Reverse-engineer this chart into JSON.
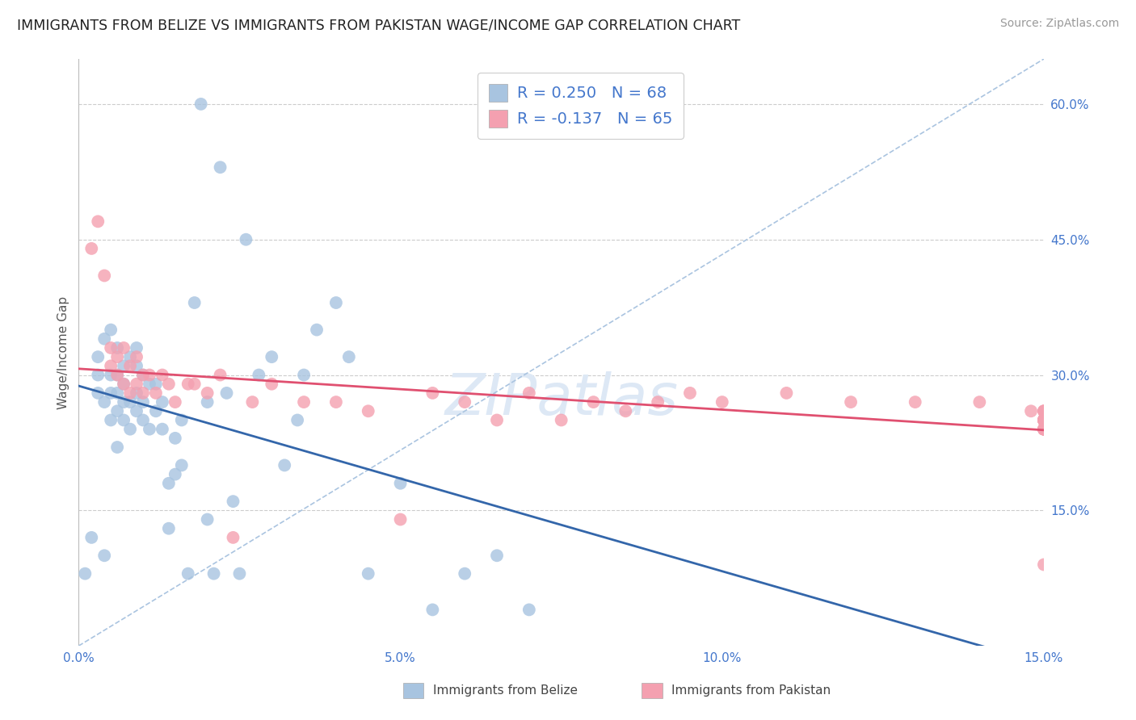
{
  "title": "IMMIGRANTS FROM BELIZE VS IMMIGRANTS FROM PAKISTAN WAGE/INCOME GAP CORRELATION CHART",
  "source": "Source: ZipAtlas.com",
  "ylabel": "Wage/Income Gap",
  "watermark_zip": "ZIP",
  "watermark_atlas": "atlas",
  "belize_color": "#a8c4e0",
  "pakistan_color": "#f4a0b0",
  "belize_line_color": "#3366aa",
  "pakistan_line_color": "#e05070",
  "ref_line_color": "#aac4e0",
  "tick_color": "#4477cc",
  "R_belize": 0.25,
  "N_belize": 68,
  "R_pakistan": -0.137,
  "N_pakistan": 65,
  "xlim": [
    0.0,
    0.15
  ],
  "ylim": [
    0.0,
    0.65
  ],
  "ytick_vals": [
    0.15,
    0.3,
    0.45,
    0.6
  ],
  "ytick_labels": [
    "15.0%",
    "30.0%",
    "45.0%",
    "60.0%"
  ],
  "xtick_vals": [
    0.0,
    0.05,
    0.1,
    0.15
  ],
  "xtick_labels": [
    "0.0%",
    "5.0%",
    "10.0%",
    "15.0%"
  ],
  "legend_label_belize": "Immigrants from Belize",
  "legend_label_pakistan": "Immigrants from Pakistan",
  "belize_x": [
    0.001,
    0.002,
    0.003,
    0.003,
    0.003,
    0.004,
    0.004,
    0.004,
    0.005,
    0.005,
    0.005,
    0.005,
    0.006,
    0.006,
    0.006,
    0.006,
    0.006,
    0.007,
    0.007,
    0.007,
    0.007,
    0.008,
    0.008,
    0.008,
    0.009,
    0.009,
    0.009,
    0.009,
    0.01,
    0.01,
    0.01,
    0.011,
    0.011,
    0.012,
    0.012,
    0.013,
    0.013,
    0.014,
    0.014,
    0.015,
    0.015,
    0.016,
    0.016,
    0.017,
    0.018,
    0.019,
    0.02,
    0.02,
    0.021,
    0.022,
    0.023,
    0.024,
    0.025,
    0.026,
    0.028,
    0.03,
    0.032,
    0.034,
    0.035,
    0.037,
    0.04,
    0.042,
    0.045,
    0.05,
    0.055,
    0.06,
    0.065,
    0.07
  ],
  "belize_y": [
    0.08,
    0.12,
    0.28,
    0.3,
    0.32,
    0.1,
    0.27,
    0.34,
    0.25,
    0.28,
    0.3,
    0.35,
    0.22,
    0.26,
    0.28,
    0.3,
    0.33,
    0.25,
    0.27,
    0.29,
    0.31,
    0.24,
    0.27,
    0.32,
    0.26,
    0.28,
    0.31,
    0.33,
    0.25,
    0.27,
    0.3,
    0.24,
    0.29,
    0.26,
    0.29,
    0.24,
    0.27,
    0.13,
    0.18,
    0.19,
    0.23,
    0.2,
    0.25,
    0.08,
    0.38,
    0.6,
    0.14,
    0.27,
    0.08,
    0.53,
    0.28,
    0.16,
    0.08,
    0.45,
    0.3,
    0.32,
    0.2,
    0.25,
    0.3,
    0.35,
    0.38,
    0.32,
    0.08,
    0.18,
    0.04,
    0.08,
    0.1,
    0.04
  ],
  "pakistan_x": [
    0.002,
    0.003,
    0.004,
    0.005,
    0.005,
    0.006,
    0.006,
    0.007,
    0.007,
    0.008,
    0.008,
    0.009,
    0.009,
    0.01,
    0.01,
    0.011,
    0.012,
    0.013,
    0.014,
    0.015,
    0.017,
    0.018,
    0.02,
    0.022,
    0.024,
    0.027,
    0.03,
    0.035,
    0.04,
    0.045,
    0.05,
    0.055,
    0.06,
    0.065,
    0.07,
    0.075,
    0.08,
    0.085,
    0.09,
    0.095,
    0.1,
    0.11,
    0.12,
    0.13,
    0.14,
    0.148,
    0.15,
    0.15,
    0.15,
    0.15,
    0.15,
    0.15,
    0.15,
    0.15,
    0.15,
    0.15,
    0.15,
    0.15,
    0.15,
    0.15,
    0.15,
    0.15,
    0.15,
    0.15,
    0.15
  ],
  "pakistan_y": [
    0.44,
    0.47,
    0.41,
    0.31,
    0.33,
    0.3,
    0.32,
    0.29,
    0.33,
    0.28,
    0.31,
    0.29,
    0.32,
    0.28,
    0.3,
    0.3,
    0.28,
    0.3,
    0.29,
    0.27,
    0.29,
    0.29,
    0.28,
    0.3,
    0.12,
    0.27,
    0.29,
    0.27,
    0.27,
    0.26,
    0.14,
    0.28,
    0.27,
    0.25,
    0.28,
    0.25,
    0.27,
    0.26,
    0.27,
    0.28,
    0.27,
    0.28,
    0.27,
    0.27,
    0.27,
    0.26,
    0.25,
    0.25,
    0.24,
    0.09,
    0.25,
    0.26,
    0.24,
    0.25,
    0.26,
    0.25,
    0.25,
    0.24,
    0.25,
    0.25,
    0.24,
    0.24,
    0.26,
    0.25,
    0.24
  ]
}
